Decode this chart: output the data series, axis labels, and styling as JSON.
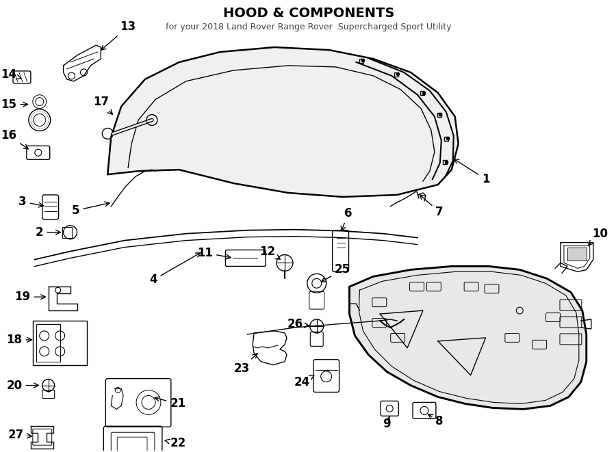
{
  "title": "HOOD & COMPONENTS",
  "subtitle": "for your 2018 Land Rover Range Rover  Supercharged Sport Utility",
  "background_color": "#ffffff",
  "line_color": "#000000",
  "lw_main": 1.8,
  "lw_thin": 1.0,
  "label_fontsize": 12,
  "title_fontsize": 14,
  "subtitle_fontsize": 9
}
